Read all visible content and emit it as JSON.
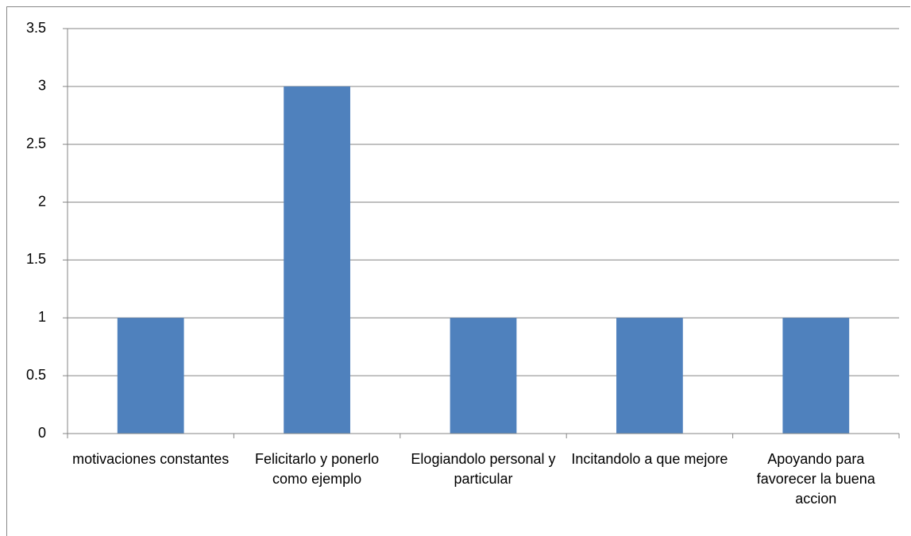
{
  "chart_data": {
    "type": "bar",
    "categories": [
      "motivaciones constantes",
      "Felicitarlo y ponerlo como ejemplo",
      "Elogiandolo personal y particular",
      "Incitandolo a que mejore",
      "Apoyando para favorecer la buena accion"
    ],
    "values": [
      1,
      3,
      1,
      1,
      1
    ],
    "color": "#4f81bd",
    "ylim": [
      0,
      3.5
    ],
    "yticks": [
      0,
      0.5,
      1,
      1.5,
      2,
      2.5,
      3,
      3.5
    ],
    "grid": true
  }
}
